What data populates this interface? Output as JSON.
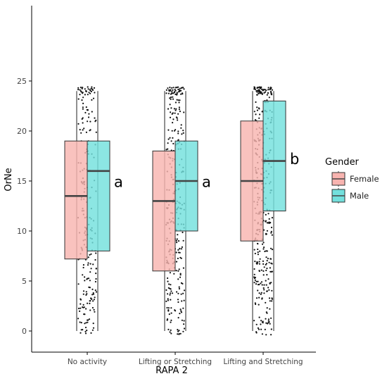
{
  "chart_data": {
    "type": "boxplot",
    "xlabel": "RAPA 2",
    "ylabel": "OrNe",
    "ylim": [
      0,
      25
    ],
    "yticks": [
      0,
      5,
      10,
      15,
      20,
      25
    ],
    "categories": [
      "No activity",
      "Lifting or Stretching",
      "Lifting and Stretching"
    ],
    "legend": {
      "title": "Gender",
      "placement": "right",
      "entries": [
        {
          "name": "Female",
          "color": "#F8B4B0"
        },
        {
          "name": "Male",
          "color": "#73E0DD"
        }
      ]
    },
    "whiskers": [
      {
        "category": "No activity",
        "min": 0,
        "max": 24
      },
      {
        "category": "Lifting or Stretching",
        "min": 0,
        "max": 24
      },
      {
        "category": "Lifting and Stretching",
        "min": 0,
        "max": 24
      }
    ],
    "series": [
      {
        "name": "Female",
        "boxes": [
          {
            "q1": 7.2,
            "median": 13.5,
            "q3": 19
          },
          {
            "q1": 6,
            "median": 13,
            "q3": 18
          },
          {
            "q1": 9,
            "median": 15,
            "q3": 21
          }
        ]
      },
      {
        "name": "Male",
        "boxes": [
          {
            "q1": 8,
            "median": 16,
            "q3": 19
          },
          {
            "q1": 10,
            "median": 15,
            "q3": 19
          },
          {
            "q1": 12,
            "median": 17,
            "q3": 23
          }
        ]
      }
    ],
    "annotations": [
      {
        "category": "No activity",
        "text": "a"
      },
      {
        "category": "Lifting or Stretching",
        "text": "a"
      },
      {
        "category": "Lifting and Stretching",
        "text": "b"
      }
    ]
  }
}
